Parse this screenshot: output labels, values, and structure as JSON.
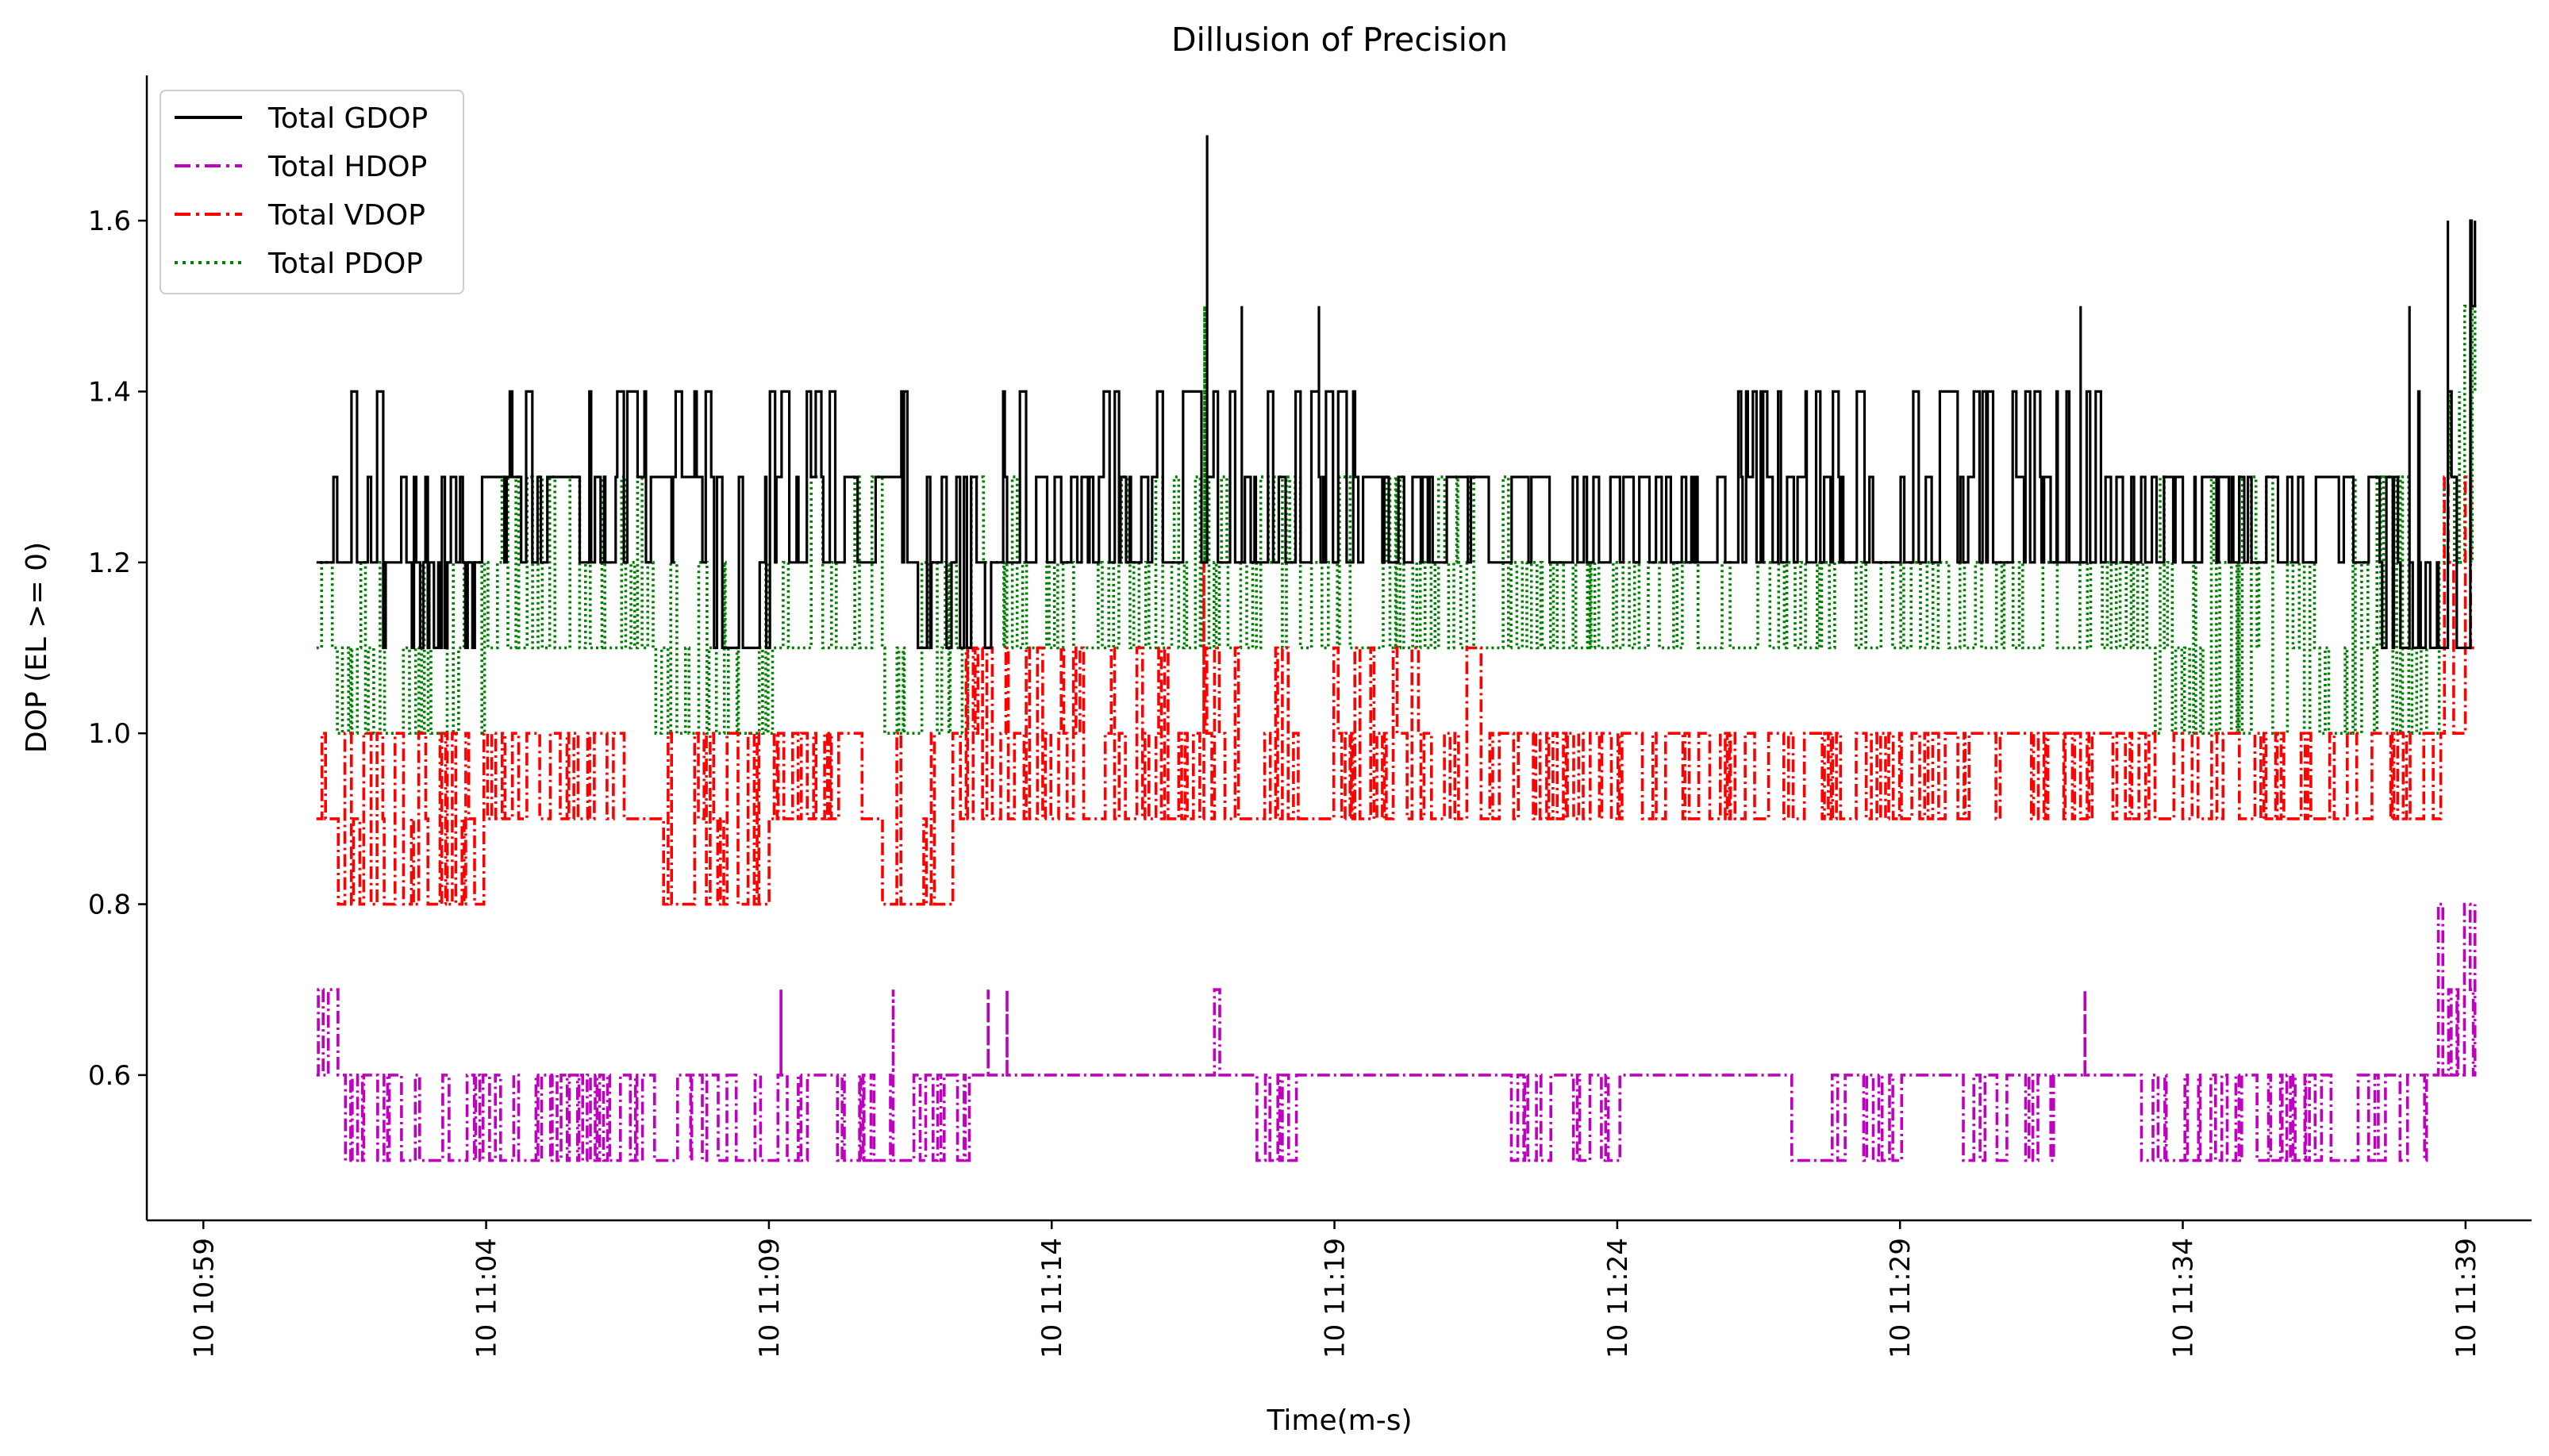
{
  "chart_data": {
    "type": "line",
    "title": "Dillusion of Precision",
    "xlabel": "Time(m-s)",
    "ylabel": "DOP (EL >= 0)",
    "xlim": [
      "10 10:58:00",
      "10 11:40:10"
    ],
    "ylim": [
      0.43,
      1.77
    ],
    "x_ticks": [
      "10 10:59",
      "10 11:04",
      "10 11:09",
      "10 11:14",
      "10 11:19",
      "10 11:24",
      "10 11:29",
      "10 11:34",
      "10 11:39"
    ],
    "y_ticks": [
      "0.6",
      "0.8",
      "1.0",
      "1.2",
      "1.4",
      "1.6"
    ],
    "grid": false,
    "legend_position": "top-left",
    "x_start": "10 11:01:00",
    "x_end": "10 11:39:10",
    "series": [
      {
        "name": "Total GDOP",
        "color": "#000000",
        "style": "solid",
        "level_segments": [
          {
            "from": "10 11:01:00",
            "levels": [
              1.2,
              1.3,
              1.4,
              1.1
            ]
          },
          {
            "from": "10 11:02:20",
            "levels": [
              1.2,
              1.1,
              1.3
            ]
          },
          {
            "from": "10 11:04:00",
            "levels": [
              1.3,
              1.2,
              1.4
            ]
          },
          {
            "from": "10 11:08:00",
            "levels": [
              1.1,
              1.2,
              1.3
            ]
          },
          {
            "from": "10 11:09:00",
            "levels": [
              1.2,
              1.3,
              1.4
            ]
          },
          {
            "from": "10 11:11:30",
            "levels": [
              1.1,
              1.2,
              1.3
            ]
          },
          {
            "from": "10 11:13:00",
            "levels": [
              1.2,
              1.3,
              1.4
            ]
          },
          {
            "from": "10 11:20:00",
            "levels": [
              1.3,
              1.2
            ]
          },
          {
            "from": "10 11:22:00",
            "levels": [
              1.2,
              1.3
            ]
          },
          {
            "from": "10 11:26:00",
            "levels": [
              1.2,
              1.3,
              1.4
            ]
          },
          {
            "from": "10 11:33:30",
            "levels": [
              1.2,
              1.3
            ]
          },
          {
            "from": "10 11:37:30",
            "levels": [
              1.1,
              1.2,
              1.3,
              1.4
            ]
          },
          {
            "from": "10 11:39:00",
            "levels": [
              1.5,
              1.6
            ]
          }
        ],
        "spikes": [
          {
            "x": "10 11:16:40",
            "y": 1.7
          },
          {
            "x": "10 11:17:20",
            "y": 1.5
          },
          {
            "x": "10 11:18:40",
            "y": 1.5
          },
          {
            "x": "10 11:32:10",
            "y": 1.5
          },
          {
            "x": "10 11:38:00",
            "y": 1.5
          },
          {
            "x": "10 11:38:40",
            "y": 1.6
          },
          {
            "x": "10 11:39:00",
            "y": 1.6
          }
        ]
      },
      {
        "name": "Total HDOP",
        "color": "#bf00bf",
        "style": "dashdot",
        "level_segments": [
          {
            "from": "10 11:01:00",
            "levels": [
              0.6,
              0.7
            ]
          },
          {
            "from": "10 11:01:30",
            "levels": [
              0.5,
              0.6
            ]
          },
          {
            "from": "10 11:12:30",
            "levels": [
              0.6
            ]
          },
          {
            "from": "10 11:16:40",
            "levels": [
              0.6,
              0.7
            ]
          },
          {
            "from": "10 11:17:10",
            "levels": [
              0.6
            ]
          },
          {
            "from": "10 11:17:30",
            "levels": [
              0.5,
              0.6
            ]
          },
          {
            "from": "10 11:18:20",
            "levels": [
              0.6
            ]
          },
          {
            "from": "10 11:22:00",
            "levels": [
              0.5,
              0.6
            ]
          },
          {
            "from": "10 11:24:00",
            "levels": [
              0.6
            ]
          },
          {
            "from": "10 11:27:00",
            "levels": [
              0.5,
              0.6
            ]
          },
          {
            "from": "10 11:29:00",
            "levels": [
              0.6
            ]
          },
          {
            "from": "10 11:30:00",
            "levels": [
              0.5,
              0.6
            ]
          },
          {
            "from": "10 11:31:50",
            "levels": [
              0.6
            ]
          },
          {
            "from": "10 11:33:00",
            "levels": [
              0.5,
              0.6
            ]
          },
          {
            "from": "10 11:38:20",
            "levels": [
              0.6,
              0.7,
              0.8
            ]
          }
        ],
        "spikes": [
          {
            "x": "10 11:09:10",
            "y": 0.7
          },
          {
            "x": "10 11:11:10",
            "y": 0.7
          },
          {
            "x": "10 11:12:50",
            "y": 0.7
          },
          {
            "x": "10 11:13:10",
            "y": 0.7
          },
          {
            "x": "10 11:32:10",
            "y": 0.7
          }
        ]
      },
      {
        "name": "Total VDOP",
        "color": "#ff0000",
        "style": "dashdot",
        "level_segments": [
          {
            "from": "10 11:01:00",
            "levels": [
              0.9,
              1.0
            ]
          },
          {
            "from": "10 11:01:20",
            "levels": [
              0.8,
              0.9,
              1.0
            ]
          },
          {
            "from": "10 11:04:00",
            "levels": [
              0.9,
              1.0
            ]
          },
          {
            "from": "10 11:07:00",
            "levels": [
              0.8,
              0.9,
              1.0
            ]
          },
          {
            "from": "10 11:09:00",
            "levels": [
              0.9,
              1.0
            ]
          },
          {
            "from": "10 11:11:00",
            "levels": [
              0.8,
              0.9,
              1.0
            ]
          },
          {
            "from": "10 11:12:20",
            "levels": [
              0.9,
              1.0,
              1.1
            ]
          },
          {
            "from": "10 11:22:00",
            "levels": [
              1.0,
              0.9
            ]
          },
          {
            "from": "10 11:38:30",
            "levels": [
              1.0,
              1.1,
              1.2,
              1.3
            ]
          }
        ],
        "spikes": [
          {
            "x": "10 11:16:40",
            "y": 1.2
          }
        ]
      },
      {
        "name": "Total PDOP",
        "color": "#008000",
        "style": "dotted",
        "level_segments": [
          {
            "from": "10 11:01:00",
            "levels": [
              1.1,
              1.2
            ]
          },
          {
            "from": "10 11:01:20",
            "levels": [
              1.0,
              1.1,
              1.2
            ]
          },
          {
            "from": "10 11:04:00",
            "levels": [
              1.1,
              1.2,
              1.3
            ]
          },
          {
            "from": "10 11:07:00",
            "levels": [
              1.0,
              1.1,
              1.2
            ]
          },
          {
            "from": "10 11:09:00",
            "levels": [
              1.1,
              1.2,
              1.3
            ]
          },
          {
            "from": "10 11:11:00",
            "levels": [
              1.0,
              1.1,
              1.2
            ]
          },
          {
            "from": "10 11:12:30",
            "levels": [
              1.1,
              1.2,
              1.3
            ]
          },
          {
            "from": "10 11:22:00",
            "levels": [
              1.1,
              1.2
            ]
          },
          {
            "from": "10 11:33:30",
            "levels": [
              1.0,
              1.1,
              1.2,
              1.3
            ]
          },
          {
            "from": "10 11:38:30",
            "levels": [
              1.2,
              1.3,
              1.4,
              1.5
            ]
          }
        ],
        "spikes": [
          {
            "x": "10 11:16:40",
            "y": 1.5
          },
          {
            "x": "10 11:38:50",
            "y": 1.4
          }
        ]
      }
    ]
  }
}
